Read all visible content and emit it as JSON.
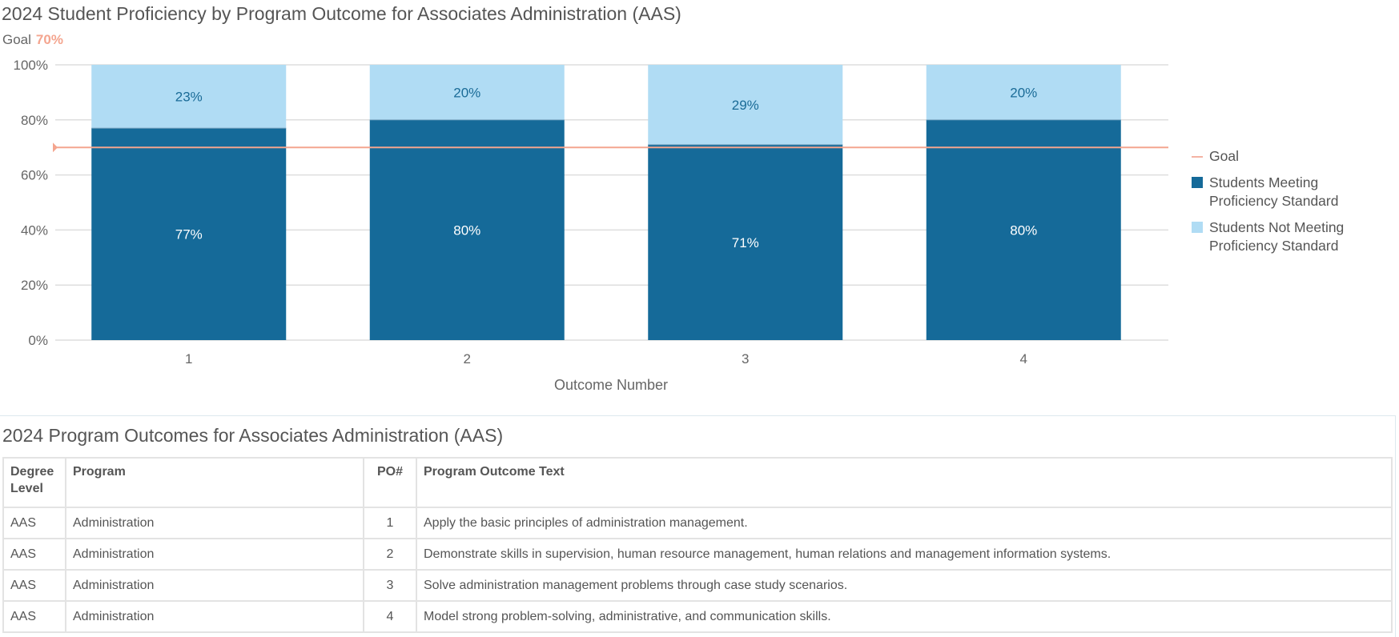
{
  "chart_title": "2024 Student Proficiency by Program Outcome for Associates Administration (AAS)",
  "goal": {
    "label": "Goal",
    "value": "70%"
  },
  "chart_data": {
    "type": "bar",
    "stacked": true,
    "categories": [
      "1",
      "2",
      "3",
      "4"
    ],
    "series": [
      {
        "name": "Students Meeting Proficiency Standard",
        "values": [
          77,
          80,
          71,
          80
        ],
        "color": "#156a99"
      },
      {
        "name": "Students Not Meeting Proficiency Standard",
        "values": [
          23,
          20,
          29,
          20
        ],
        "color": "#b0dcf4"
      }
    ],
    "goal_line": {
      "name": "Goal",
      "value": 70,
      "color": "#f4a58f"
    },
    "xlabel": "Outcome Number",
    "ylabel": "",
    "ylim": [
      0,
      100
    ],
    "yticks": [
      "0%",
      "20%",
      "40%",
      "60%",
      "80%",
      "100%"
    ],
    "grid": true,
    "legend": "right"
  },
  "legend": {
    "goal": "Goal",
    "meeting_line1": "Students Meeting",
    "meeting_line2": "Proficiency Standard",
    "not_meeting_line1": "Students Not Meeting",
    "not_meeting_line2": "Proficiency Standard"
  },
  "table": {
    "title": "2024 Program Outcomes for Associates Administration (AAS)",
    "headers": [
      "Degree Level",
      "Program",
      "PO#",
      "Program Outcome Text"
    ],
    "rows": [
      [
        "AAS",
        "Administration",
        "1",
        "Apply the basic principles of administration management."
      ],
      [
        "AAS",
        "Administration",
        "2",
        "Demonstrate skills in supervision, human resource management, human relations and management information systems."
      ],
      [
        "AAS",
        "Administration",
        "3",
        "Solve administration management problems through case study scenarios."
      ],
      [
        "AAS",
        "Administration",
        "4",
        "Model strong problem-solving, administrative, and communication skills."
      ]
    ]
  }
}
